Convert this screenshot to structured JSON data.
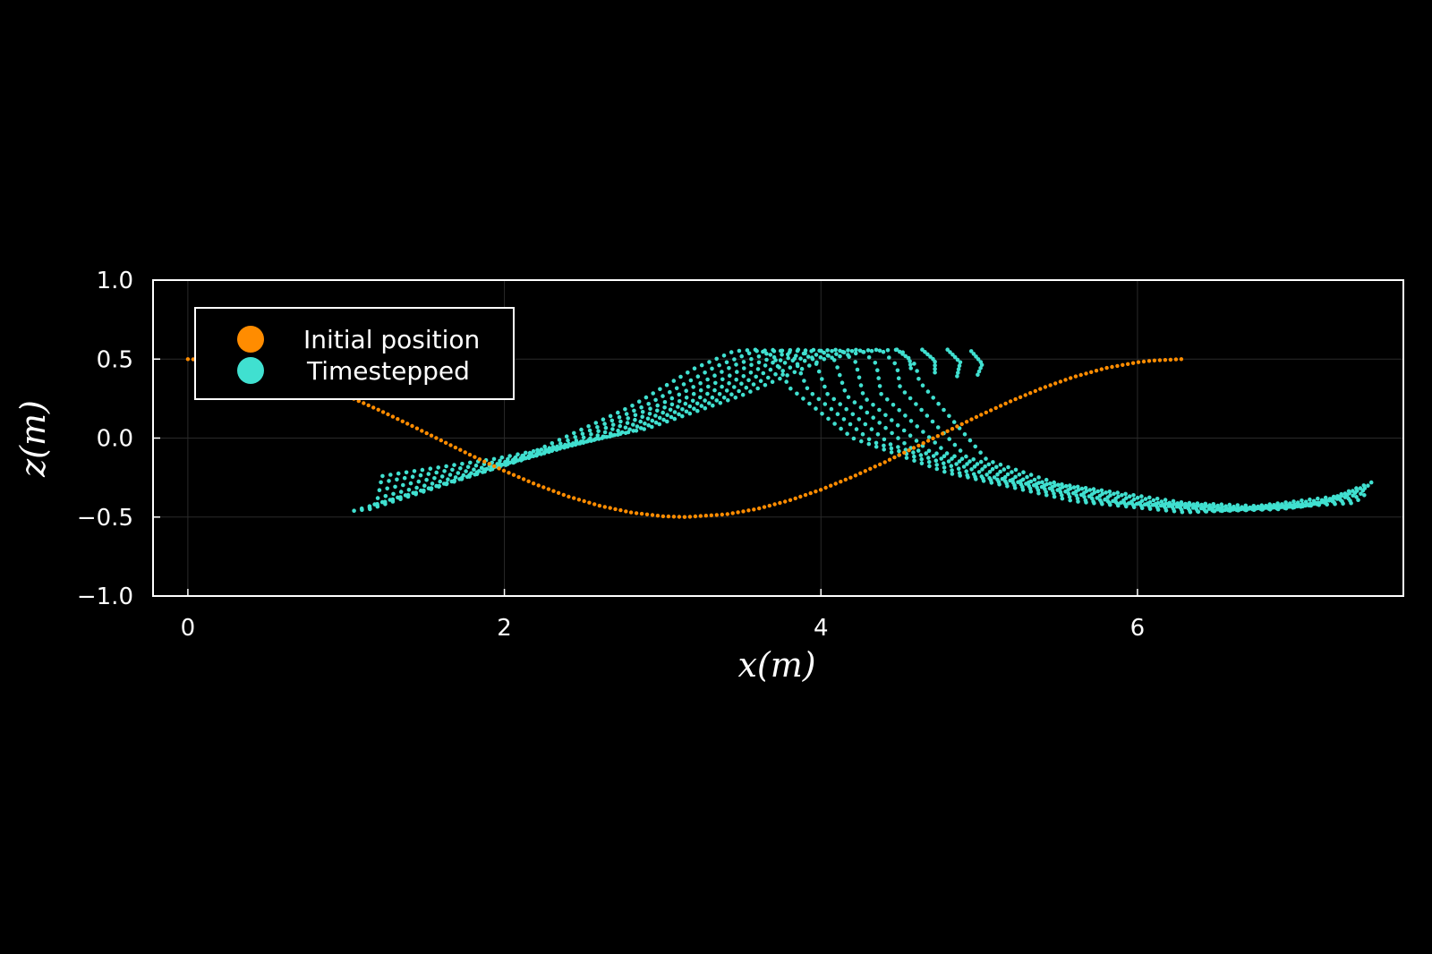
{
  "chart_data": {
    "type": "scatter",
    "title": "",
    "xlabel": "x(m)",
    "ylabel": "z(m)",
    "xlim": [
      -0.22,
      7.68
    ],
    "ylim": [
      -1.0,
      1.0
    ],
    "xticks": [
      0,
      2,
      4,
      6
    ],
    "yticks": [
      -1.0,
      -0.5,
      0.0,
      0.5,
      1.0
    ],
    "xtick_labels": [
      "0",
      "2",
      "4",
      "6"
    ],
    "ytick_labels": [
      "−1.0",
      "−0.5",
      "0.0",
      "0.5",
      "1.0"
    ],
    "grid": true,
    "legend_position": "top-left",
    "series": [
      {
        "name": "Initial position",
        "color": "#ff8c00",
        "points": [
          [
            0.0,
            0.5
          ],
          [
            0.2,
            0.49
          ],
          [
            0.4,
            0.461
          ],
          [
            0.6,
            0.413
          ],
          [
            0.8,
            0.348
          ],
          [
            1.0,
            0.27
          ],
          [
            1.2,
            0.181
          ],
          [
            1.4,
            0.085
          ],
          [
            1.6,
            -0.015
          ],
          [
            1.8,
            -0.114
          ],
          [
            2.0,
            -0.208
          ],
          [
            2.2,
            -0.294
          ],
          [
            2.4,
            -0.369
          ],
          [
            2.6,
            -0.428
          ],
          [
            2.8,
            -0.471
          ],
          [
            3.0,
            -0.495
          ],
          [
            3.1416,
            -0.5
          ],
          [
            3.4,
            -0.483
          ],
          [
            3.6,
            -0.448
          ],
          [
            3.8,
            -0.395
          ],
          [
            4.0,
            -0.327
          ],
          [
            4.2,
            -0.245
          ],
          [
            4.4,
            -0.154
          ],
          [
            4.6,
            -0.056
          ],
          [
            4.8,
            0.044
          ],
          [
            5.0,
            0.142
          ],
          [
            5.2,
            0.234
          ],
          [
            5.4,
            0.317
          ],
          [
            5.6,
            0.388
          ],
          [
            5.8,
            0.443
          ],
          [
            6.0,
            0.48
          ],
          [
            6.1,
            0.491
          ],
          [
            6.2832,
            0.5
          ]
        ]
      },
      {
        "name": "Timestepped",
        "color": "#40e0d0",
        "curves": [
          [
            [
              1.05,
              -0.46
            ],
            [
              1.6,
              -0.3
            ],
            [
              2.2,
              -0.08
            ],
            [
              2.8,
              0.2
            ],
            [
              3.2,
              0.44
            ],
            [
              3.45,
              0.55
            ],
            [
              3.6,
              0.56
            ],
            [
              3.7,
              0.52
            ],
            [
              3.8,
              0.32
            ],
            [
              4.2,
              0.0
            ],
            [
              4.8,
              -0.22
            ],
            [
              5.6,
              -0.4
            ],
            [
              6.3,
              -0.47
            ],
            [
              6.8,
              -0.45
            ],
            [
              7.2,
              -0.42
            ],
            [
              7.38,
              -0.41
            ]
          ],
          [
            [
              1.1,
              -0.455
            ],
            [
              1.65,
              -0.285
            ],
            [
              2.3,
              -0.06
            ],
            [
              2.9,
              0.21
            ],
            [
              3.33,
              0.45
            ],
            [
              3.58,
              0.55
            ],
            [
              3.73,
              0.56
            ],
            [
              3.83,
              0.51
            ],
            [
              3.92,
              0.3
            ],
            [
              4.32,
              -0.02
            ],
            [
              4.9,
              -0.23
            ],
            [
              5.7,
              -0.4
            ],
            [
              6.4,
              -0.465
            ],
            [
              6.9,
              -0.45
            ],
            [
              7.3,
              -0.4
            ],
            [
              7.42,
              -0.39
            ]
          ],
          [
            [
              1.15,
              -0.45
            ],
            [
              1.7,
              -0.27
            ],
            [
              2.4,
              -0.04
            ],
            [
              3.0,
              0.22
            ],
            [
              3.45,
              0.46
            ],
            [
              3.7,
              0.55
            ],
            [
              3.86,
              0.56
            ],
            [
              3.96,
              0.5
            ],
            [
              4.04,
              0.28
            ],
            [
              4.44,
              -0.04
            ],
            [
              5.0,
              -0.24
            ],
            [
              5.8,
              -0.4
            ],
            [
              6.5,
              -0.46
            ],
            [
              7.0,
              -0.44
            ],
            [
              7.35,
              -0.38
            ],
            [
              7.44,
              -0.36
            ]
          ],
          [
            [
              1.18,
              -0.42
            ],
            [
              1.75,
              -0.25
            ],
            [
              2.5,
              -0.02
            ],
            [
              3.1,
              0.23
            ],
            [
              3.55,
              0.46
            ],
            [
              3.82,
              0.55
            ],
            [
              3.99,
              0.56
            ],
            [
              4.09,
              0.49
            ],
            [
              4.16,
              0.27
            ],
            [
              4.56,
              -0.06
            ],
            [
              5.1,
              -0.25
            ],
            [
              5.9,
              -0.41
            ],
            [
              6.55,
              -0.455
            ],
            [
              7.05,
              -0.43
            ],
            [
              7.38,
              -0.36
            ],
            [
              7.46,
              -0.34
            ]
          ],
          [
            [
              1.2,
              -0.38
            ],
            [
              1.8,
              -0.22
            ],
            [
              2.6,
              0.0
            ],
            [
              3.2,
              0.24
            ],
            [
              3.67,
              0.47
            ],
            [
              3.94,
              0.55
            ],
            [
              4.12,
              0.56
            ],
            [
              4.22,
              0.48
            ],
            [
              4.27,
              0.26
            ],
            [
              4.68,
              -0.08
            ],
            [
              5.2,
              -0.26
            ],
            [
              6.0,
              -0.41
            ],
            [
              6.6,
              -0.45
            ],
            [
              7.1,
              -0.42
            ],
            [
              7.4,
              -0.34
            ],
            [
              7.47,
              -0.32
            ]
          ],
          [
            [
              1.21,
              -0.33
            ],
            [
              1.85,
              -0.19
            ],
            [
              2.7,
              0.02
            ],
            [
              3.3,
              0.25
            ],
            [
              3.78,
              0.48
            ],
            [
              4.06,
              0.55
            ],
            [
              4.25,
              0.56
            ],
            [
              4.35,
              0.47
            ],
            [
              4.38,
              0.28
            ],
            [
              4.8,
              -0.1
            ],
            [
              5.3,
              -0.27
            ],
            [
              6.1,
              -0.41
            ],
            [
              6.65,
              -0.445
            ],
            [
              7.15,
              -0.41
            ],
            [
              7.43,
              -0.32
            ],
            [
              7.48,
              -0.3
            ]
          ],
          [
            [
              1.22,
              -0.28
            ],
            [
              1.9,
              -0.16
            ],
            [
              2.8,
              0.04
            ],
            [
              3.4,
              0.26
            ],
            [
              3.9,
              0.49
            ],
            [
              4.18,
              0.55
            ],
            [
              4.38,
              0.56
            ],
            [
              4.48,
              0.46
            ],
            [
              4.5,
              0.32
            ],
            [
              4.92,
              -0.12
            ],
            [
              5.4,
              -0.28
            ],
            [
              6.2,
              -0.41
            ],
            [
              6.7,
              -0.44
            ],
            [
              7.2,
              -0.39
            ],
            [
              7.46,
              -0.3
            ],
            [
              7.49,
              -0.29
            ]
          ],
          [
            [
              1.23,
              -0.24
            ],
            [
              1.95,
              -0.13
            ],
            [
              2.9,
              0.06
            ],
            [
              3.5,
              0.27
            ],
            [
              4.02,
              0.5
            ],
            [
              4.3,
              0.55
            ],
            [
              4.5,
              0.56
            ],
            [
              4.6,
              0.46
            ],
            [
              4.62,
              0.36
            ],
            [
              5.05,
              -0.14
            ],
            [
              5.5,
              -0.29
            ],
            [
              6.3,
              -0.41
            ],
            [
              6.75,
              -0.43
            ],
            [
              7.25,
              -0.37
            ],
            [
              7.48,
              -0.28
            ],
            [
              7.5,
              -0.27
            ]
          ]
        ],
        "curls": [
          [
            [
              4.48,
              0.56
            ],
            [
              4.56,
              0.5
            ],
            [
              4.57,
              0.43
            ]
          ],
          [
            [
              4.64,
              0.56
            ],
            [
              4.72,
              0.49
            ],
            [
              4.72,
              0.41
            ]
          ],
          [
            [
              4.8,
              0.56
            ],
            [
              4.88,
              0.48
            ],
            [
              4.86,
              0.39
            ]
          ],
          [
            [
              4.95,
              0.55
            ],
            [
              5.02,
              0.47
            ],
            [
              4.99,
              0.4
            ]
          ]
        ]
      }
    ]
  }
}
